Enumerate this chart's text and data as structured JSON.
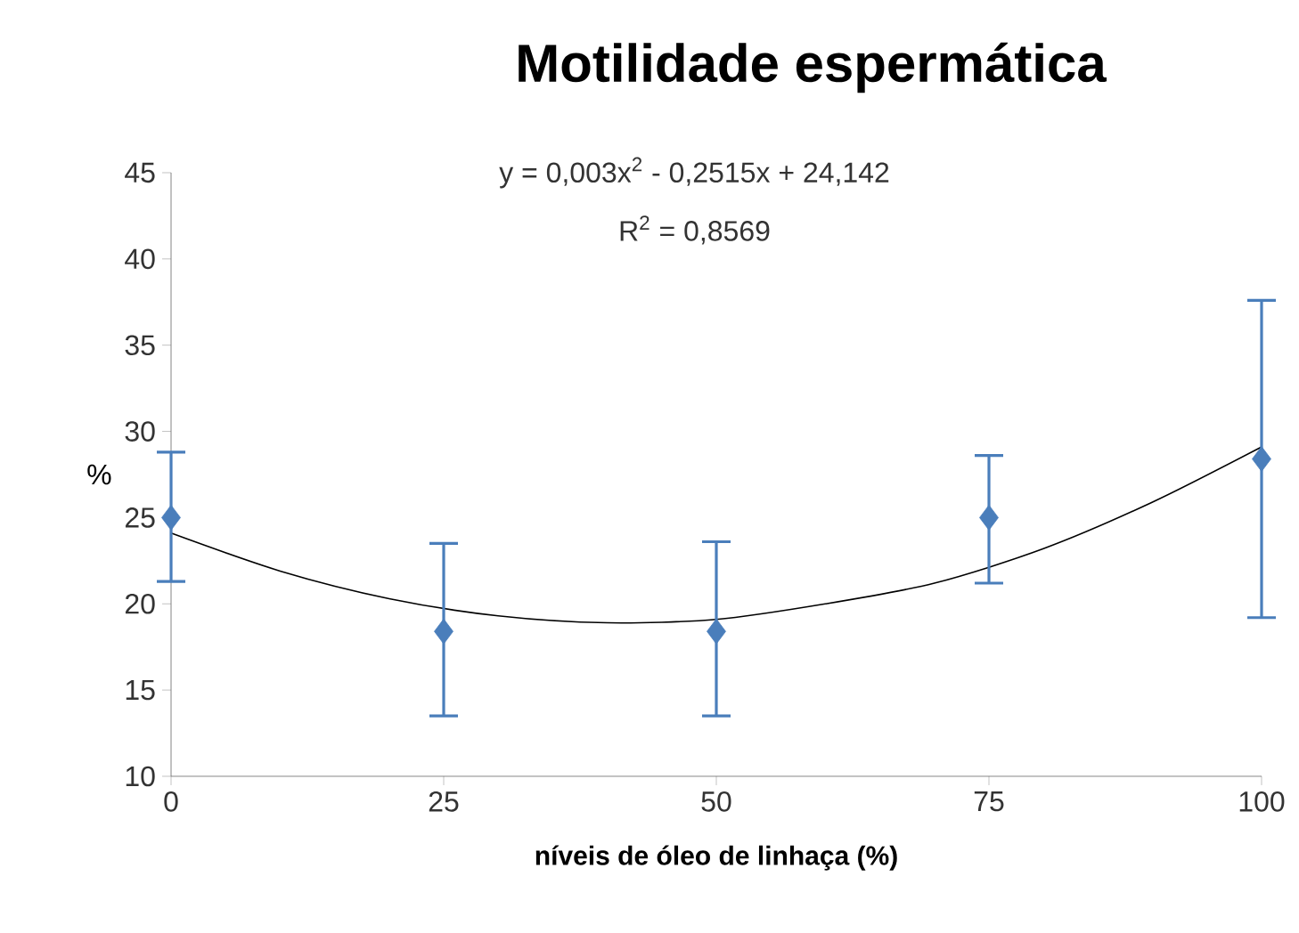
{
  "chart_data": {
    "type": "scatter",
    "title": "Motilidade espermática",
    "xlabel": "níveis de óleo de linhaça (%)",
    "ylabel": "%",
    "xlim": [
      0,
      100
    ],
    "xticks": [
      0,
      25,
      50,
      75,
      100
    ],
    "ylim": [
      10,
      45
    ],
    "yticks": [
      10,
      15,
      20,
      25,
      30,
      35,
      40,
      45
    ],
    "annotations": [
      "y = 0,003x$^{2}$ - 0,2515x + 24,142",
      "R$^{2}$ = 0,8569"
    ],
    "series": [
      {
        "color": "#4a7ebb",
        "marker": "diamond",
        "x": [
          0,
          25,
          50,
          75,
          100
        ],
        "values": [
          25.0,
          18.4,
          18.4,
          25.0,
          28.4
        ],
        "errors": [
          [
            21.3,
            28.8
          ],
          [
            13.5,
            23.5
          ],
          [
            13.5,
            23.6
          ],
          [
            21.2,
            28.6
          ],
          [
            19.2,
            37.6
          ]
        ]
      },
      {
        "type": "line",
        "color": "#000000",
        "marker": "none",
        "line_style": "solid",
        "x": [
          0,
          10,
          20,
          30,
          40,
          50,
          60,
          70,
          80,
          90,
          100
        ],
        "values": [
          24.1,
          21.9,
          20.3,
          19.3,
          18.9,
          19.1,
          20.0,
          21.2,
          23.2,
          25.9,
          29.1
        ]
      }
    ]
  }
}
